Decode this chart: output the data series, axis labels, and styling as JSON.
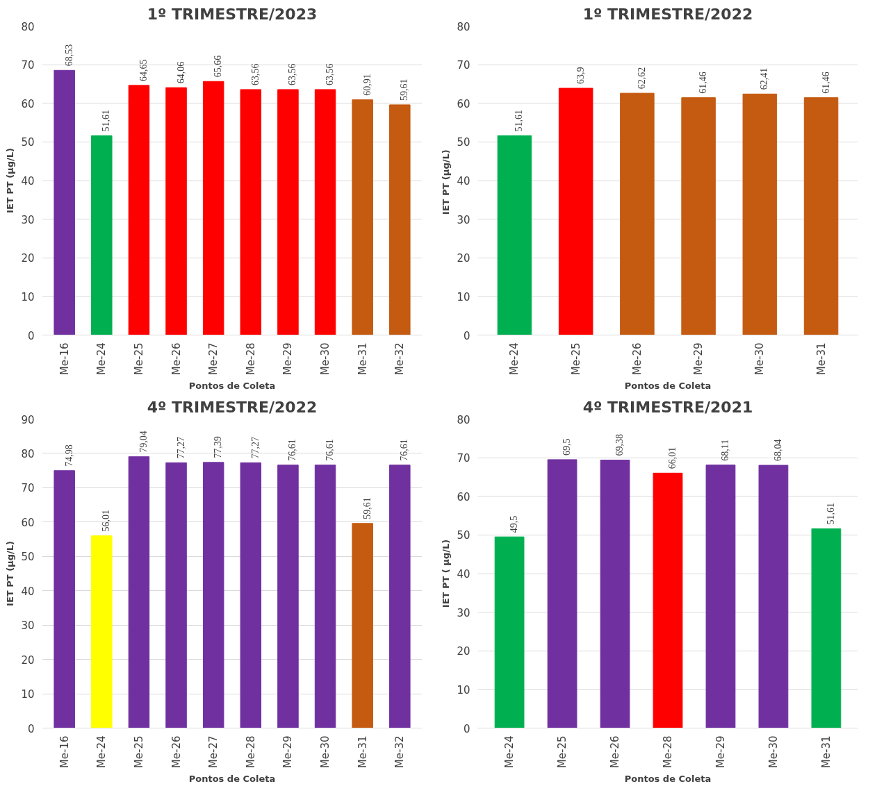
{
  "chart_data": [
    {
      "type": "bar",
      "title": "1º TRIMESTRE/2023",
      "xlabel": "Pontos de Coleta",
      "ylabel": "IET PT (µg/L)",
      "categories": [
        "Me-16",
        "Me-24",
        "Me-25",
        "Me-26",
        "Me-27",
        "Me-28",
        "Me-29",
        "Me-30",
        "Me-31",
        "Me-32"
      ],
      "values": [
        68.53,
        51.61,
        64.65,
        64.06,
        65.66,
        63.56,
        63.56,
        63.56,
        60.91,
        59.61
      ],
      "value_labels": [
        "68,53",
        "51,61",
        "64,65",
        "64,06",
        "65,66",
        "63,56",
        "63,56",
        "63,56",
        "60,91",
        "59,61"
      ],
      "colors": [
        "#7030a0",
        "#00b050",
        "#ff0000",
        "#ff0000",
        "#ff0000",
        "#ff0000",
        "#ff0000",
        "#ff0000",
        "#c55a11",
        "#c55a11"
      ],
      "ylim": [
        0,
        80
      ],
      "yticks": [
        0,
        10,
        20,
        30,
        40,
        50,
        60,
        70,
        80
      ],
      "grid": "y",
      "legend": false
    },
    {
      "type": "bar",
      "title": "1º TRIMESTRE/2022",
      "xlabel": "Pontos de Coleta",
      "ylabel": "IET PT  (µg/L)",
      "categories": [
        "Me-24",
        "Me-25",
        "Me-26",
        "Me-29",
        "Me-30",
        "Me-31"
      ],
      "values": [
        51.61,
        63.9,
        62.62,
        61.46,
        62.41,
        61.46
      ],
      "value_labels": [
        "51,61",
        "63,9",
        "62,62",
        "61,46",
        "62,41",
        "61,46"
      ],
      "colors": [
        "#00b050",
        "#ff0000",
        "#c55a11",
        "#c55a11",
        "#c55a11",
        "#c55a11"
      ],
      "ylim": [
        0,
        80
      ],
      "yticks": [
        0,
        10,
        20,
        30,
        40,
        50,
        60,
        70,
        80
      ],
      "grid": "y",
      "legend": false
    },
    {
      "type": "bar",
      "title": "4º TRIMESTRE/2022",
      "xlabel": "Pontos de Coleta",
      "ylabel": "IET PT (µg/L)",
      "categories": [
        "Me-16",
        "Me-24",
        "Me-25",
        "Me-26",
        "Me-27",
        "Me-28",
        "Me-29",
        "Me-30",
        "Me-31",
        "Me-32"
      ],
      "values": [
        74.98,
        56.01,
        79.04,
        77.27,
        77.39,
        77.27,
        76.61,
        76.61,
        59.61,
        76.61
      ],
      "value_labels": [
        "74,98",
        "56,01",
        "79,04",
        "77,27",
        "77,39",
        "77,27",
        "76,61",
        "76,61",
        "59,61",
        "76,61"
      ],
      "colors": [
        "#7030a0",
        "#ffff00",
        "#7030a0",
        "#7030a0",
        "#7030a0",
        "#7030a0",
        "#7030a0",
        "#7030a0",
        "#c55a11",
        "#7030a0"
      ],
      "ylim": [
        0,
        90
      ],
      "yticks": [
        0,
        10,
        20,
        30,
        40,
        50,
        60,
        70,
        80,
        90
      ],
      "grid": "y",
      "legend": false
    },
    {
      "type": "bar",
      "title": "4º TRIMESTRE/2021",
      "xlabel": "Pontos de Coleta",
      "ylabel": "IET PT ( µg/L)",
      "categories": [
        "Me-24",
        "Me-25",
        "Me-26",
        "Me-28",
        "Me-29",
        "Me-30",
        "Me-31"
      ],
      "values": [
        49.5,
        69.5,
        69.38,
        66.01,
        68.11,
        68.04,
        51.61
      ],
      "value_labels": [
        "49,5",
        "69,5",
        "69,38",
        "66,01",
        "68,11",
        "68,04",
        "51,61"
      ],
      "colors": [
        "#00b050",
        "#7030a0",
        "#7030a0",
        "#ff0000",
        "#7030a0",
        "#7030a0",
        "#00b050"
      ],
      "ylim": [
        0,
        80
      ],
      "yticks": [
        0,
        10,
        20,
        30,
        40,
        50,
        60,
        70,
        80
      ],
      "grid": "y",
      "legend": false
    }
  ]
}
